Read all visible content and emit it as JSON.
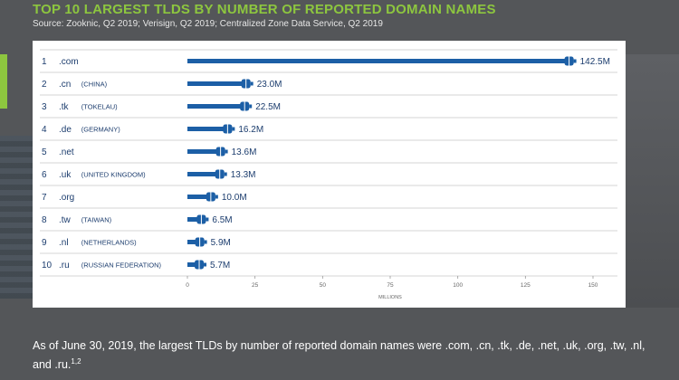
{
  "page": {
    "title": "TOP 10 LARGEST TLDS BY NUMBER OF REPORTED DOMAIN NAMES",
    "source": "Source: Zooknic, Q2 2019; Verisign, Q2 2019; Centralized Zone Data Service, Q2 2019",
    "caption": "As of June 30, 2019, the largest TLDs by number of reported domain names were .com, .cn, .tk, .de, .net, .uk, .org, .tw, .nl, and .ru.",
    "caption_note": "1,2"
  },
  "colors": {
    "background": "#545659",
    "accent": "#8dc63f",
    "bar": "#1c5fa6",
    "panel": "#ffffff"
  },
  "chart_data": {
    "type": "bar",
    "orientation": "horizontal",
    "ranks": [
      "1",
      "2",
      "3",
      "4",
      "5",
      "6",
      "7",
      "8",
      "9",
      "10"
    ],
    "categories": [
      ".com",
      ".cn",
      ".tk",
      ".de",
      ".net",
      ".uk",
      ".org",
      ".tw",
      ".nl",
      ".ru"
    ],
    "countries": [
      "",
      "(CHINA)",
      "(TOKELAU)",
      "(GERMANY)",
      "",
      "(UNITED KINGDOM)",
      "",
      "(TAIWAN)",
      "(NETHERLANDS)",
      "(RUSSIAN FEDERATION)"
    ],
    "values": [
      142.5,
      23.0,
      22.5,
      16.2,
      13.6,
      13.3,
      10.0,
      6.5,
      5.9,
      5.7
    ],
    "value_labels": [
      "142.5M",
      "23.0M",
      "22.5M",
      "16.2M",
      "13.6M",
      "13.3M",
      "10.0M",
      "6.5M",
      "5.9M",
      "5.7M"
    ],
    "xlabel": "MILLIONS",
    "xlim": [
      0,
      150
    ],
    "xticks": [
      0,
      25,
      50,
      75,
      100,
      125,
      150
    ],
    "xtick_labels": [
      "0",
      "25",
      "50",
      "75",
      "100",
      "125",
      "150"
    ],
    "grid": "row separators"
  }
}
